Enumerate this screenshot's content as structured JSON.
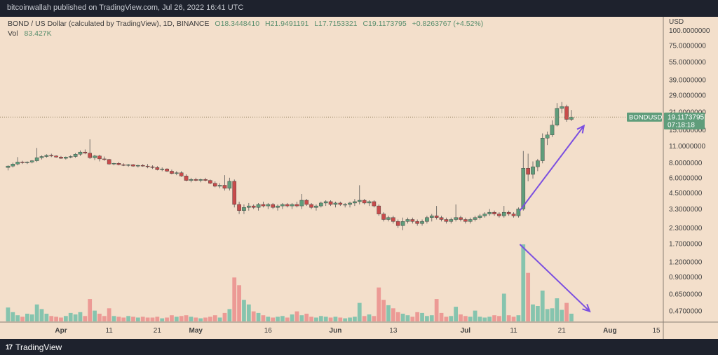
{
  "publisher": "bitcoinwallah published on TradingView.com, Jul 26, 2022 16:41 UTC",
  "brand": {
    "mark": "17",
    "name": "TradingView"
  },
  "colors": {
    "frame": "#1e222d",
    "panel": "#f3dfcb",
    "up": "#5f9d7b",
    "down": "#c84b4b",
    "vol_up": "#86c4ae",
    "vol_down": "#ec9a95",
    "arrow": "#7b4fe0",
    "axis_text": "#404040",
    "price_line": "#9c8a6a",
    "price_tag": "#5f9d7b",
    "text_green": "#5a8f6e"
  },
  "legend": {
    "symbol": "BOND / US Dollar (calculated by TradingView), 1D, BINANCE",
    "o": "O18.3448410",
    "h": "H21.9491191",
    "l": "L17.7153321",
    "c": "C19.1173795",
    "chg": "+0.8263767 (+4.52%)",
    "vol_label": "Vol",
    "vol_value": "83.427K"
  },
  "price_tag": {
    "symbol": "BONDUSD",
    "price": "19.1173795",
    "countdown": "07:18:18"
  },
  "chart_data": {
    "type": "candlestick",
    "title": "BOND / US Dollar (calculated by TradingView), 1D, BINANCE",
    "price_scale": "log",
    "currency": "USD",
    "last_price": 19.1173795,
    "ylim": [
      0.38,
      130
    ],
    "xlim_index": [
      -0.5,
      135.5
    ],
    "y_ticks": [
      "100.0000000",
      "75.0000000",
      "55.0000000",
      "39.0000000",
      "29.0000000",
      "21.0000000",
      "15.0000000",
      "11.0000000",
      "8.0000000",
      "6.0000000",
      "4.5000000",
      "3.3000000",
      "2.3000000",
      "1.7000000",
      "1.2000000",
      "0.9000000",
      "0.6500000",
      "0.4700000"
    ],
    "x_ticks": [
      {
        "label": "Apr",
        "index": 11
      },
      {
        "label": "11",
        "index": 21
      },
      {
        "label": "21",
        "index": 31
      },
      {
        "label": "May",
        "index": 39
      },
      {
        "label": "16",
        "index": 54
      },
      {
        "label": "Jun",
        "index": 68
      },
      {
        "label": "13",
        "index": 80
      },
      {
        "label": "Jul",
        "index": 95
      },
      {
        "label": "11",
        "index": 105
      },
      {
        "label": "21",
        "index": 115
      },
      {
        "label": "Aug",
        "index": 125
      },
      {
        "label": "15",
        "index": 139
      }
    ],
    "volume_max": 1.0,
    "candles": [
      {
        "o": 7.3,
        "h": 7.6,
        "l": 6.9,
        "c": 7.5,
        "v": 0.18
      },
      {
        "o": 7.5,
        "h": 8.0,
        "l": 7.3,
        "c": 7.8,
        "v": 0.12
      },
      {
        "o": 7.8,
        "h": 8.9,
        "l": 7.6,
        "c": 8.1,
        "v": 0.08
      },
      {
        "o": 8.1,
        "h": 8.3,
        "l": 7.8,
        "c": 8.0,
        "v": 0.06
      },
      {
        "o": 8.0,
        "h": 8.2,
        "l": 7.8,
        "c": 8.1,
        "v": 0.1
      },
      {
        "o": 8.1,
        "h": 8.4,
        "l": 7.9,
        "c": 8.3,
        "v": 0.09
      },
      {
        "o": 8.3,
        "h": 10.6,
        "l": 8.1,
        "c": 8.8,
        "v": 0.22
      },
      {
        "o": 8.8,
        "h": 9.2,
        "l": 8.5,
        "c": 9.0,
        "v": 0.16
      },
      {
        "o": 9.0,
        "h": 9.4,
        "l": 8.8,
        "c": 9.2,
        "v": 0.1
      },
      {
        "o": 9.2,
        "h": 9.5,
        "l": 8.9,
        "c": 9.1,
        "v": 0.07
      },
      {
        "o": 9.1,
        "h": 9.2,
        "l": 8.8,
        "c": 8.9,
        "v": 0.06
      },
      {
        "o": 8.9,
        "h": 9.1,
        "l": 8.6,
        "c": 8.7,
        "v": 0.05
      },
      {
        "o": 8.7,
        "h": 9.0,
        "l": 8.5,
        "c": 8.9,
        "v": 0.07
      },
      {
        "o": 8.9,
        "h": 9.2,
        "l": 8.7,
        "c": 9.0,
        "v": 0.11
      },
      {
        "o": 9.0,
        "h": 9.6,
        "l": 8.8,
        "c": 9.4,
        "v": 0.09
      },
      {
        "o": 9.4,
        "h": 10.1,
        "l": 9.1,
        "c": 9.8,
        "v": 0.12
      },
      {
        "o": 9.8,
        "h": 10.3,
        "l": 9.4,
        "c": 9.6,
        "v": 0.07
      },
      {
        "o": 9.6,
        "h": 12.5,
        "l": 8.6,
        "c": 8.8,
        "v": 0.29
      },
      {
        "o": 8.8,
        "h": 9.3,
        "l": 8.4,
        "c": 9.1,
        "v": 0.14
      },
      {
        "o": 9.1,
        "h": 9.3,
        "l": 8.2,
        "c": 8.6,
        "v": 0.1
      },
      {
        "o": 8.6,
        "h": 9.0,
        "l": 8.3,
        "c": 8.5,
        "v": 0.07
      },
      {
        "o": 8.5,
        "h": 8.6,
        "l": 7.7,
        "c": 7.8,
        "v": 0.17
      },
      {
        "o": 7.8,
        "h": 8.0,
        "l": 7.6,
        "c": 7.9,
        "v": 0.07
      },
      {
        "o": 7.9,
        "h": 8.1,
        "l": 7.6,
        "c": 7.7,
        "v": 0.06
      },
      {
        "o": 7.7,
        "h": 7.9,
        "l": 7.5,
        "c": 7.6,
        "v": 0.05
      },
      {
        "o": 7.6,
        "h": 7.8,
        "l": 7.4,
        "c": 7.7,
        "v": 0.07
      },
      {
        "o": 7.7,
        "h": 7.8,
        "l": 7.4,
        "c": 7.5,
        "v": 0.06
      },
      {
        "o": 7.5,
        "h": 7.7,
        "l": 7.3,
        "c": 7.6,
        "v": 0.05
      },
      {
        "o": 7.6,
        "h": 7.8,
        "l": 7.4,
        "c": 7.5,
        "v": 0.06
      },
      {
        "o": 7.5,
        "h": 7.8,
        "l": 7.2,
        "c": 7.4,
        "v": 0.05
      },
      {
        "o": 7.4,
        "h": 7.6,
        "l": 7.1,
        "c": 7.3,
        "v": 0.05
      },
      {
        "o": 7.3,
        "h": 7.5,
        "l": 6.9,
        "c": 7.0,
        "v": 0.06
      },
      {
        "o": 7.0,
        "h": 7.3,
        "l": 6.8,
        "c": 7.1,
        "v": 0.04
      },
      {
        "o": 7.1,
        "h": 7.2,
        "l": 6.7,
        "c": 6.8,
        "v": 0.05
      },
      {
        "o": 6.8,
        "h": 7.0,
        "l": 6.4,
        "c": 6.5,
        "v": 0.08
      },
      {
        "o": 6.5,
        "h": 6.8,
        "l": 6.3,
        "c": 6.6,
        "v": 0.06
      },
      {
        "o": 6.6,
        "h": 6.8,
        "l": 6.1,
        "c": 6.2,
        "v": 0.07
      },
      {
        "o": 6.2,
        "h": 6.4,
        "l": 5.6,
        "c": 5.7,
        "v": 0.08
      },
      {
        "o": 5.7,
        "h": 6.0,
        "l": 5.5,
        "c": 5.8,
        "v": 0.06
      },
      {
        "o": 5.8,
        "h": 6.0,
        "l": 5.6,
        "c": 5.7,
        "v": 0.05
      },
      {
        "o": 5.7,
        "h": 5.9,
        "l": 5.5,
        "c": 5.8,
        "v": 0.04
      },
      {
        "o": 5.8,
        "h": 6.0,
        "l": 5.6,
        "c": 5.7,
        "v": 0.05
      },
      {
        "o": 5.7,
        "h": 5.8,
        "l": 5.3,
        "c": 5.4,
        "v": 0.06
      },
      {
        "o": 5.4,
        "h": 5.6,
        "l": 5.0,
        "c": 5.1,
        "v": 0.08
      },
      {
        "o": 5.1,
        "h": 5.4,
        "l": 4.9,
        "c": 5.2,
        "v": 0.05
      },
      {
        "o": 5.2,
        "h": 6.3,
        "l": 4.7,
        "c": 4.9,
        "v": 0.11
      },
      {
        "o": 4.9,
        "h": 6.0,
        "l": 4.7,
        "c": 5.6,
        "v": 0.16
      },
      {
        "o": 5.6,
        "h": 5.8,
        "l": 3.4,
        "c": 3.6,
        "v": 0.57
      },
      {
        "o": 3.6,
        "h": 3.8,
        "l": 3.0,
        "c": 3.2,
        "v": 0.47
      },
      {
        "o": 3.2,
        "h": 3.6,
        "l": 3.0,
        "c": 3.4,
        "v": 0.28
      },
      {
        "o": 3.4,
        "h": 3.7,
        "l": 3.2,
        "c": 3.5,
        "v": 0.22
      },
      {
        "o": 3.5,
        "h": 3.6,
        "l": 3.3,
        "c": 3.4,
        "v": 0.13
      },
      {
        "o": 3.4,
        "h": 3.7,
        "l": 3.2,
        "c": 3.6,
        "v": 0.11
      },
      {
        "o": 3.6,
        "h": 3.8,
        "l": 3.4,
        "c": 3.5,
        "v": 0.08
      },
      {
        "o": 3.5,
        "h": 3.7,
        "l": 3.3,
        "c": 3.6,
        "v": 0.06
      },
      {
        "o": 3.6,
        "h": 3.7,
        "l": 3.3,
        "c": 3.4,
        "v": 0.05
      },
      {
        "o": 3.4,
        "h": 3.6,
        "l": 3.2,
        "c": 3.5,
        "v": 0.06
      },
      {
        "o": 3.5,
        "h": 3.7,
        "l": 3.3,
        "c": 3.6,
        "v": 0.07
      },
      {
        "o": 3.6,
        "h": 3.7,
        "l": 3.4,
        "c": 3.5,
        "v": 0.05
      },
      {
        "o": 3.5,
        "h": 3.7,
        "l": 3.3,
        "c": 3.6,
        "v": 0.09
      },
      {
        "o": 3.6,
        "h": 3.8,
        "l": 3.4,
        "c": 3.5,
        "v": 0.13
      },
      {
        "o": 3.5,
        "h": 4.4,
        "l": 3.3,
        "c": 3.9,
        "v": 0.08
      },
      {
        "o": 3.9,
        "h": 4.0,
        "l": 3.5,
        "c": 3.6,
        "v": 0.1
      },
      {
        "o": 3.6,
        "h": 3.7,
        "l": 3.3,
        "c": 3.4,
        "v": 0.06
      },
      {
        "o": 3.4,
        "h": 3.6,
        "l": 3.2,
        "c": 3.5,
        "v": 0.05
      },
      {
        "o": 3.5,
        "h": 3.8,
        "l": 3.4,
        "c": 3.7,
        "v": 0.07
      },
      {
        "o": 3.7,
        "h": 3.9,
        "l": 3.5,
        "c": 3.8,
        "v": 0.06
      },
      {
        "o": 3.8,
        "h": 3.9,
        "l": 3.5,
        "c": 3.6,
        "v": 0.05
      },
      {
        "o": 3.6,
        "h": 3.8,
        "l": 3.4,
        "c": 3.7,
        "v": 0.06
      },
      {
        "o": 3.7,
        "h": 3.8,
        "l": 3.5,
        "c": 3.6,
        "v": 0.05
      },
      {
        "o": 3.6,
        "h": 3.7,
        "l": 3.4,
        "c": 3.6,
        "v": 0.04
      },
      {
        "o": 3.6,
        "h": 3.8,
        "l": 3.4,
        "c": 3.7,
        "v": 0.05
      },
      {
        "o": 3.7,
        "h": 4.0,
        "l": 3.5,
        "c": 3.8,
        "v": 0.06
      },
      {
        "o": 3.8,
        "h": 5.2,
        "l": 3.6,
        "c": 3.9,
        "v": 0.24
      },
      {
        "o": 3.9,
        "h": 4.0,
        "l": 3.6,
        "c": 3.7,
        "v": 0.07
      },
      {
        "o": 3.7,
        "h": 3.9,
        "l": 3.5,
        "c": 3.8,
        "v": 0.09
      },
      {
        "o": 3.8,
        "h": 3.9,
        "l": 3.4,
        "c": 3.5,
        "v": 0.07
      },
      {
        "o": 3.5,
        "h": 3.6,
        "l": 2.9,
        "c": 3.0,
        "v": 0.44
      },
      {
        "o": 3.0,
        "h": 3.1,
        "l": 2.6,
        "c": 2.7,
        "v": 0.28
      },
      {
        "o": 2.7,
        "h": 2.9,
        "l": 2.6,
        "c": 2.8,
        "v": 0.21
      },
      {
        "o": 2.8,
        "h": 2.9,
        "l": 2.5,
        "c": 2.6,
        "v": 0.17
      },
      {
        "o": 2.6,
        "h": 2.7,
        "l": 2.3,
        "c": 2.4,
        "v": 0.12
      },
      {
        "o": 2.4,
        "h": 2.8,
        "l": 2.2,
        "c": 2.6,
        "v": 0.1
      },
      {
        "o": 2.6,
        "h": 2.8,
        "l": 2.5,
        "c": 2.7,
        "v": 0.08
      },
      {
        "o": 2.7,
        "h": 2.8,
        "l": 2.5,
        "c": 2.6,
        "v": 0.06
      },
      {
        "o": 2.6,
        "h": 2.7,
        "l": 2.4,
        "c": 2.5,
        "v": 0.12
      },
      {
        "o": 2.5,
        "h": 2.7,
        "l": 2.4,
        "c": 2.6,
        "v": 0.11
      },
      {
        "o": 2.6,
        "h": 2.9,
        "l": 2.5,
        "c": 2.8,
        "v": 0.07
      },
      {
        "o": 2.8,
        "h": 3.0,
        "l": 2.6,
        "c": 2.9,
        "v": 0.08
      },
      {
        "o": 2.9,
        "h": 3.5,
        "l": 2.7,
        "c": 2.8,
        "v": 0.29
      },
      {
        "o": 2.8,
        "h": 2.9,
        "l": 2.6,
        "c": 2.7,
        "v": 0.11
      },
      {
        "o": 2.7,
        "h": 2.8,
        "l": 2.5,
        "c": 2.6,
        "v": 0.06
      },
      {
        "o": 2.6,
        "h": 2.8,
        "l": 2.5,
        "c": 2.7,
        "v": 0.07
      },
      {
        "o": 2.7,
        "h": 3.6,
        "l": 2.6,
        "c": 2.8,
        "v": 0.19
      },
      {
        "o": 2.8,
        "h": 2.9,
        "l": 2.6,
        "c": 2.7,
        "v": 0.09
      },
      {
        "o": 2.7,
        "h": 2.8,
        "l": 2.5,
        "c": 2.6,
        "v": 0.07
      },
      {
        "o": 2.6,
        "h": 2.8,
        "l": 2.5,
        "c": 2.7,
        "v": 0.06
      },
      {
        "o": 2.7,
        "h": 2.9,
        "l": 2.6,
        "c": 2.8,
        "v": 0.14
      },
      {
        "o": 2.8,
        "h": 3.0,
        "l": 2.7,
        "c": 2.9,
        "v": 0.06
      },
      {
        "o": 2.9,
        "h": 3.1,
        "l": 2.8,
        "c": 3.0,
        "v": 0.05
      },
      {
        "o": 3.0,
        "h": 3.3,
        "l": 2.9,
        "c": 3.1,
        "v": 0.06
      },
      {
        "o": 3.1,
        "h": 3.2,
        "l": 2.9,
        "c": 3.0,
        "v": 0.08
      },
      {
        "o": 3.0,
        "h": 3.1,
        "l": 2.8,
        "c": 2.9,
        "v": 0.07
      },
      {
        "o": 2.9,
        "h": 3.5,
        "l": 2.8,
        "c": 3.1,
        "v": 0.36
      },
      {
        "o": 3.1,
        "h": 3.2,
        "l": 2.9,
        "c": 3.0,
        "v": 0.08
      },
      {
        "o": 3.0,
        "h": 3.1,
        "l": 2.8,
        "c": 2.9,
        "v": 0.06
      },
      {
        "o": 2.9,
        "h": 3.4,
        "l": 2.8,
        "c": 3.3,
        "v": 0.08
      },
      {
        "o": 3.3,
        "h": 10.0,
        "l": 3.2,
        "c": 7.2,
        "v": 1.0
      },
      {
        "o": 7.2,
        "h": 9.5,
        "l": 5.6,
        "c": 6.4,
        "v": 0.63
      },
      {
        "o": 6.4,
        "h": 8.2,
        "l": 5.9,
        "c": 7.4,
        "v": 0.22
      },
      {
        "o": 7.4,
        "h": 8.6,
        "l": 6.8,
        "c": 8.3,
        "v": 0.2
      },
      {
        "o": 8.3,
        "h": 14.0,
        "l": 7.9,
        "c": 12.8,
        "v": 0.4
      },
      {
        "o": 12.8,
        "h": 14.5,
        "l": 11.2,
        "c": 13.6,
        "v": 0.16
      },
      {
        "o": 13.6,
        "h": 18.0,
        "l": 13.1,
        "c": 16.4,
        "v": 0.17
      },
      {
        "o": 16.4,
        "h": 25.0,
        "l": 16.0,
        "c": 22.6,
        "v": 0.3
      },
      {
        "o": 22.6,
        "h": 25.5,
        "l": 20.6,
        "c": 23.4,
        "v": 0.15
      },
      {
        "o": 23.4,
        "h": 24.2,
        "l": 17.5,
        "c": 18.3,
        "v": 0.24
      },
      {
        "o": 18.3,
        "h": 21.9,
        "l": 17.7,
        "c": 19.1,
        "v": 0.1
      }
    ]
  }
}
